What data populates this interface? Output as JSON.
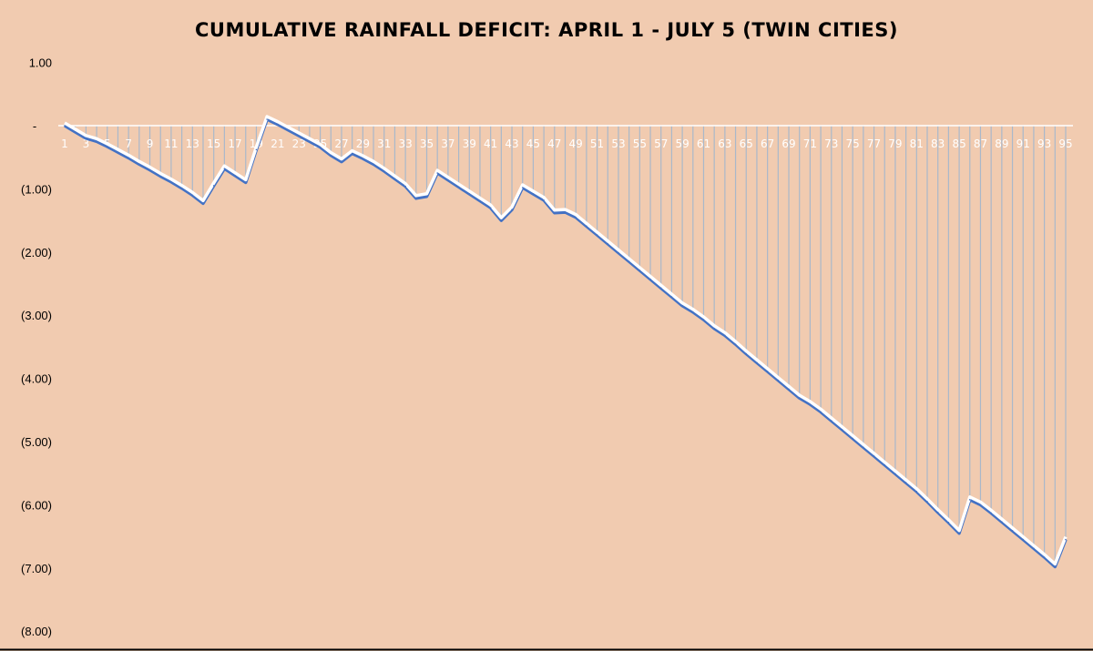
{
  "chart_data": {
    "type": "line",
    "title": "CUMULATIVE RAINFALL DEFICIT: APRIL 1 - JULY 5 (TWIN CITIES)",
    "xlabel": "",
    "ylabel": "",
    "ylim": [
      -8,
      1
    ],
    "yticks": [
      {
        "value": 1,
        "label": "1.00"
      },
      {
        "value": 0,
        "label": "-"
      },
      {
        "value": -1,
        "label": "(1.00)"
      },
      {
        "value": -2,
        "label": "(2.00)"
      },
      {
        "value": -3,
        "label": "(3.00)"
      },
      {
        "value": -4,
        "label": "(4.00)"
      },
      {
        "value": -5,
        "label": "(5.00)"
      },
      {
        "value": -6,
        "label": "(6.00)"
      },
      {
        "value": -7,
        "label": "(7.00)"
      },
      {
        "value": -8,
        "label": "(8.00)"
      }
    ],
    "x_tick_step": 2,
    "drop_lines": true,
    "grid": false,
    "legend": "none",
    "colors": {
      "background": "#F1CBB0",
      "line": "#4472C4",
      "line_highlight": "#FFFFFF",
      "drop_lines": "#A9B8CA",
      "axis": "#FFFFFF"
    },
    "x": [
      1,
      2,
      3,
      4,
      5,
      6,
      7,
      8,
      9,
      10,
      11,
      12,
      13,
      14,
      15,
      16,
      17,
      18,
      19,
      20,
      21,
      22,
      23,
      24,
      25,
      26,
      27,
      28,
      29,
      30,
      31,
      32,
      33,
      34,
      35,
      36,
      37,
      38,
      39,
      40,
      41,
      42,
      43,
      44,
      45,
      46,
      47,
      48,
      49,
      50,
      51,
      52,
      53,
      54,
      55,
      56,
      57,
      58,
      59,
      60,
      61,
      62,
      63,
      64,
      65,
      66,
      67,
      68,
      69,
      70,
      71,
      72,
      73,
      74,
      75,
      76,
      77,
      78,
      79,
      80,
      81,
      82,
      83,
      84,
      85,
      86,
      87,
      88,
      89,
      90,
      91,
      92,
      93,
      94,
      95
    ],
    "values": [
      0,
      -0.1,
      -0.2,
      -0.25,
      -0.33,
      -0.42,
      -0.51,
      -0.61,
      -0.7,
      -0.8,
      -0.89,
      -0.99,
      -1.1,
      -1.23,
      -0.95,
      -0.68,
      -0.79,
      -0.9,
      -0.38,
      0.1,
      0.02,
      -0.07,
      -0.16,
      -0.25,
      -0.34,
      -0.47,
      -0.57,
      -0.44,
      -0.52,
      -0.61,
      -0.72,
      -0.84,
      -0.96,
      -1.15,
      -1.12,
      -0.75,
      -0.86,
      -0.97,
      -1.08,
      -1.19,
      -1.3,
      -1.5,
      -1.33,
      -0.98,
      -1.08,
      -1.18,
      -1.38,
      -1.37,
      -1.45,
      -1.59,
      -1.73,
      -1.87,
      -2.01,
      -2.15,
      -2.29,
      -2.43,
      -2.57,
      -2.71,
      -2.85,
      -2.95,
      -3.07,
      -3.21,
      -3.32,
      -3.46,
      -3.61,
      -3.75,
      -3.89,
      -4.03,
      -4.17,
      -4.31,
      -4.41,
      -4.53,
      -4.67,
      -4.81,
      -4.95,
      -5.09,
      -5.23,
      -5.37,
      -5.51,
      -5.65,
      -5.79,
      -5.95,
      -6.12,
      -6.28,
      -6.45,
      -5.92,
      -6.0,
      -6.13,
      -6.27,
      -6.41,
      -6.55,
      -6.69,
      -6.83,
      -6.98,
      -6.55
    ]
  }
}
